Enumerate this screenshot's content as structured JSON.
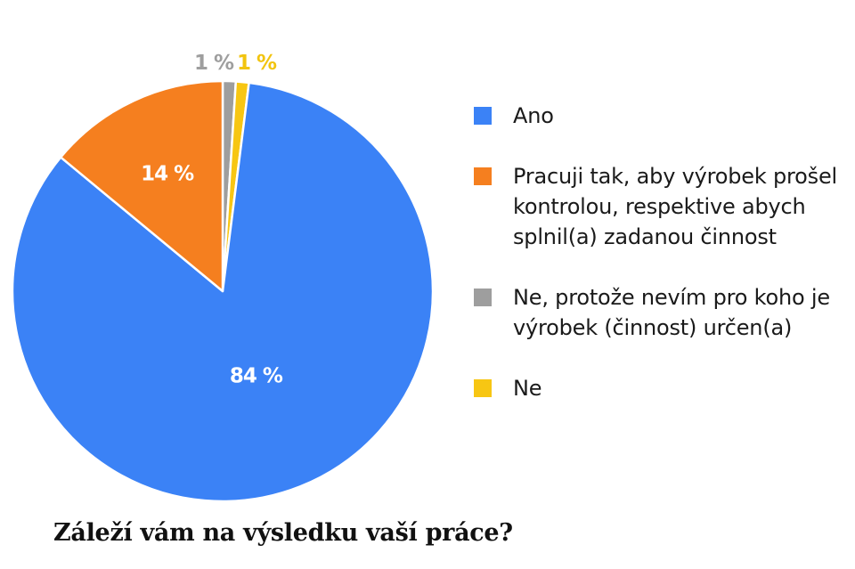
{
  "chart_data": {
    "type": "pie",
    "title": "Záleží vám na výsledku vaší práce?",
    "categories": [
      "Ano",
      "Pracuji tak, aby výrobek prošel kontrolou, respektive abych splnil(a) zadanou činnost",
      "Ne, protože nevím pro koho je výrobek (činnost) určen(a)",
      "Ne"
    ],
    "values": [
      84,
      14,
      1,
      1
    ],
    "value_labels": [
      "84 %",
      "14 %",
      "1 %",
      "1 %"
    ],
    "colors": [
      "#3b82f6",
      "#f57f1f",
      "#9e9e9e",
      "#f7c613"
    ],
    "label_colors": [
      "#ffffff",
      "#ffffff",
      "#9e9e9e",
      "#f2c40f"
    ],
    "legend_position": "right"
  }
}
